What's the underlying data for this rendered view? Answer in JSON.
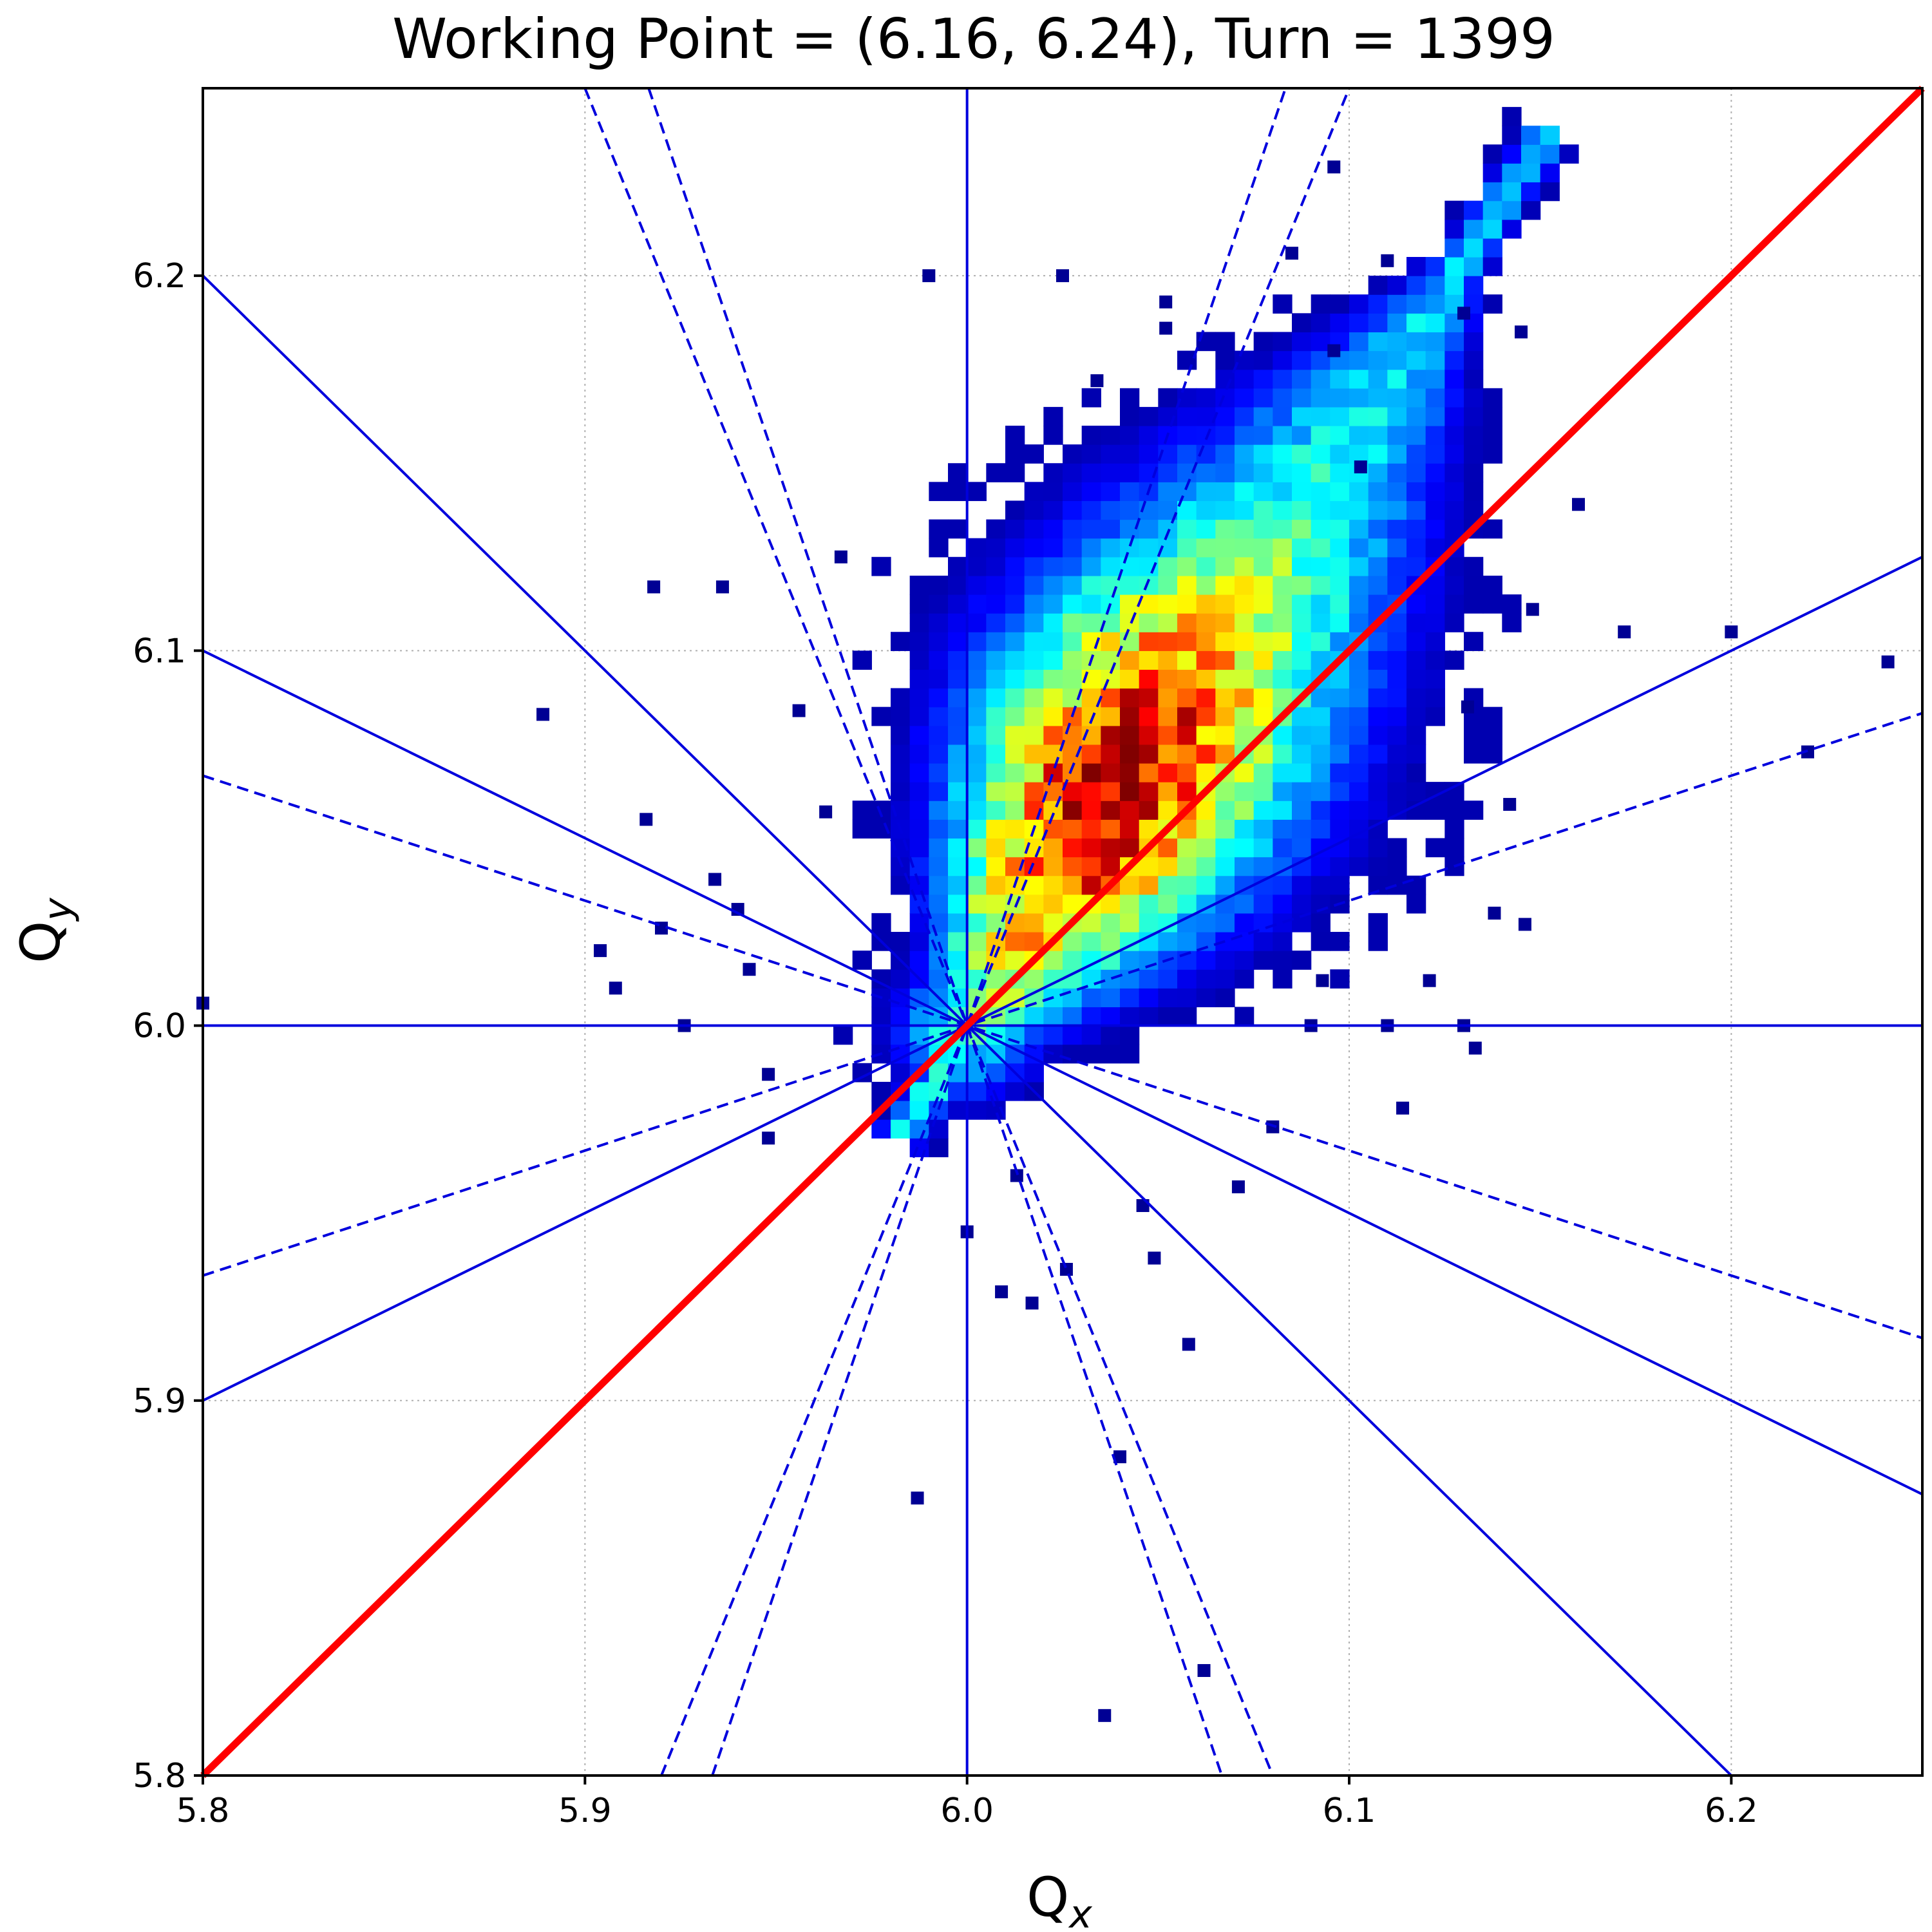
{
  "chart_data": {
    "type": "heatmap",
    "title": "Working Point = (6.16, 6.24), Turn = 1399",
    "xlabel": {
      "main": "Q",
      "sub": "x"
    },
    "ylabel": {
      "main": "Q",
      "sub": "y"
    },
    "xlim": [
      5.8,
      6.25
    ],
    "ylim": [
      5.8,
      6.25
    ],
    "xticks": [
      5.8,
      5.9,
      6.0,
      6.1,
      6.2
    ],
    "yticks": [
      5.8,
      5.9,
      6.0,
      6.1,
      6.2
    ],
    "xtick_labels": [
      "5.8",
      "5.9",
      "6.0",
      "6.1",
      "6.2"
    ],
    "ytick_labels": [
      "5.8",
      "5.9",
      "6.0",
      "6.1",
      "6.2"
    ],
    "grid": true,
    "colormap": "jet",
    "colors": {
      "diagonal": "#ff0000",
      "resonance_lines": "#0000dd",
      "grid": "#b0b0b0",
      "axes": "#000000"
    },
    "resonance_center": [
      6.0,
      6.0
    ],
    "resonance_lines": {
      "solid_slopes": [
        0,
        0.5,
        -0.5,
        -1,
        1,
        "vertical"
      ],
      "dashed_slopes": [
        0.3333,
        -0.3333,
        2.5,
        -2.5,
        3.0,
        -3.0
      ]
    },
    "diagonal_line": {
      "from": [
        5.8,
        5.8
      ],
      "to": [
        6.25,
        6.25
      ]
    },
    "density_model": {
      "description": "elongated tune footprint from near (6.0, 6.0) toward (6.15, 6.235)",
      "spine_start": [
        5.995,
        5.99
      ],
      "spine_end": [
        6.15,
        6.235
      ],
      "peak_near": [
        6.03,
        6.07
      ],
      "bin_size": 0.005
    },
    "outliers": [
      [
        5.8,
        6.006
      ],
      [
        5.889,
        6.083
      ],
      [
        5.904,
        6.02
      ],
      [
        5.908,
        6.01
      ],
      [
        5.916,
        6.055
      ],
      [
        5.918,
        6.117
      ],
      [
        5.92,
        6.026
      ],
      [
        5.926,
        6.0
      ],
      [
        5.934,
        6.039
      ],
      [
        5.936,
        6.117
      ],
      [
        5.94,
        6.031
      ],
      [
        5.943,
        6.015
      ],
      [
        5.948,
        5.987
      ],
      [
        5.948,
        5.97
      ],
      [
        5.956,
        6.084
      ],
      [
        5.963,
        6.057
      ],
      [
        5.967,
        6.125
      ],
      [
        5.987,
        5.874
      ],
      [
        5.99,
        6.2
      ],
      [
        6.009,
        5.929
      ],
      [
        6.025,
        6.2
      ],
      [
        6.034,
        6.172
      ],
      [
        6.04,
        5.885
      ],
      [
        6.046,
        5.952
      ],
      [
        6.049,
        5.938
      ],
      [
        6.058,
        5.915
      ],
      [
        6.062,
        5.828
      ],
      [
        6.036,
        5.816
      ],
      [
        6.09,
        6.0
      ],
      [
        6.093,
        6.012
      ],
      [
        6.11,
        6.0
      ],
      [
        6.114,
        5.978
      ],
      [
        6.121,
        6.012
      ],
      [
        6.131,
        6.085
      ],
      [
        6.138,
        6.03
      ],
      [
        6.146,
        6.027
      ],
      [
        6.16,
        6.139
      ],
      [
        6.172,
        6.105
      ],
      [
        6.2,
        6.105
      ],
      [
        6.22,
        6.073
      ],
      [
        6.241,
        6.097
      ],
      [
        6.13,
        6.0
      ],
      [
        6.133,
        5.994
      ],
      [
        6.142,
        6.059
      ],
      [
        6.148,
        6.111
      ],
      [
        6.096,
        6.229
      ],
      [
        6.096,
        6.18
      ],
      [
        6.052,
        6.186
      ],
      [
        6.052,
        6.193
      ],
      [
        6.085,
        6.206
      ],
      [
        6.11,
        6.204
      ],
      [
        6.13,
        6.19
      ],
      [
        6.103,
        6.149
      ],
      [
        6.145,
        6.185
      ],
      [
        6.017,
        5.926
      ],
      [
        6.026,
        5.935
      ],
      [
        6.013,
        5.96
      ],
      [
        6.071,
        5.957
      ],
      [
        6.08,
        5.973
      ],
      [
        6.0,
        5.945
      ]
    ]
  }
}
